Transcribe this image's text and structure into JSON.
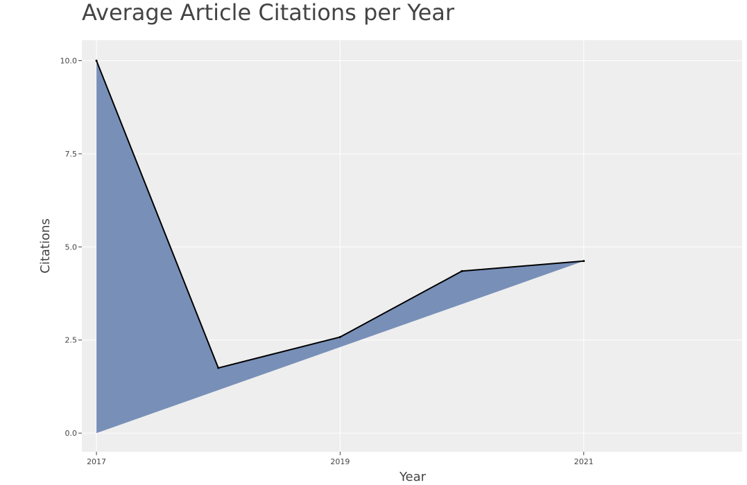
{
  "chart_data": {
    "type": "area",
    "title": "Average Article Citations per Year",
    "xlabel": "Year",
    "ylabel": "Citations",
    "x": [
      2017,
      2018,
      2019,
      2020,
      2021
    ],
    "series": [
      {
        "values": [
          10.0,
          1.75,
          2.58,
          4.35,
          4.62
        ]
      }
    ],
    "fill_baseline": "straight line from first point at 0 to last point",
    "xlim": [
      2016.88,
      2022.3
    ],
    "ylim": [
      -0.5,
      10.55
    ],
    "x_ticks": [
      2017,
      2019,
      2021
    ],
    "x_tick_labels": [
      "2017",
      "2019",
      "2021"
    ],
    "y_ticks": [
      0,
      2.5,
      5,
      7.5,
      10
    ],
    "y_tick_labels": [
      "0.0",
      "2.5",
      "5.0",
      "7.5",
      "10.0"
    ],
    "grid": true,
    "legend": "none",
    "colors": {
      "fill": "#7890b8",
      "line": "#000000",
      "plot_bg": "#eeeeee",
      "grid": "#ffffff"
    }
  }
}
